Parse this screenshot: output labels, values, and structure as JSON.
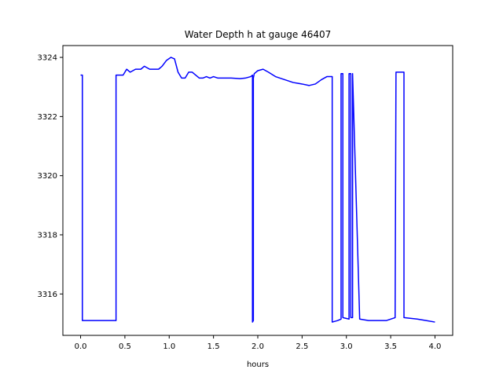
{
  "chart_data": {
    "type": "line",
    "title": "Water Depth h at gauge 46407",
    "xlabel": "hours",
    "ylabel": "",
    "xlim": [
      -0.2,
      4.2
    ],
    "ylim": [
      3314.6,
      3324.4
    ],
    "xticks": [
      0.0,
      0.5,
      1.0,
      1.5,
      2.0,
      2.5,
      3.0,
      3.5,
      4.0
    ],
    "xtick_labels": [
      "0.0",
      "0.5",
      "1.0",
      "1.5",
      "2.0",
      "2.5",
      "3.0",
      "3.5",
      "4.0"
    ],
    "yticks": [
      3316,
      3318,
      3320,
      3322,
      3324
    ],
    "ytick_labels": [
      "3316",
      "3318",
      "3320",
      "3322",
      "3324"
    ],
    "grid": false,
    "series": [
      {
        "color": "#0000ff",
        "x": [
          0.0,
          0.02,
          0.02,
          0.38,
          0.4,
          0.4,
          0.48,
          0.52,
          0.56,
          0.62,
          0.68,
          0.72,
          0.78,
          0.82,
          0.88,
          0.92,
          0.97,
          1.02,
          1.06,
          1.1,
          1.14,
          1.18,
          1.22,
          1.26,
          1.3,
          1.34,
          1.38,
          1.42,
          1.46,
          1.5,
          1.55,
          1.6,
          1.7,
          1.8,
          1.86,
          1.92,
          1.94,
          1.94,
          1.95,
          1.95,
          1.96,
          2.0,
          2.06,
          2.12,
          2.2,
          2.3,
          2.4,
          2.5,
          2.58,
          2.65,
          2.72,
          2.78,
          2.84,
          2.84,
          2.9,
          2.94,
          2.94,
          2.96,
          2.96,
          3.03,
          3.03,
          3.05,
          3.05,
          3.07,
          3.07,
          3.15,
          3.25,
          3.35,
          3.45,
          3.55,
          3.56,
          3.56,
          3.65,
          3.65,
          3.8,
          3.9,
          4.0
        ],
        "y": [
          3323.4,
          3323.4,
          3315.1,
          3315.1,
          3315.1,
          3323.4,
          3323.4,
          3323.6,
          3323.5,
          3323.6,
          3323.6,
          3323.7,
          3323.6,
          3323.6,
          3323.6,
          3323.7,
          3323.9,
          3324.0,
          3323.95,
          3323.5,
          3323.3,
          3323.3,
          3323.5,
          3323.5,
          3323.4,
          3323.3,
          3323.3,
          3323.35,
          3323.3,
          3323.35,
          3323.3,
          3323.3,
          3323.3,
          3323.28,
          3323.3,
          3323.35,
          3323.4,
          3315.05,
          3315.1,
          3323.3,
          3323.45,
          3323.55,
          3323.6,
          3323.5,
          3323.35,
          3323.25,
          3323.15,
          3323.1,
          3323.05,
          3323.1,
          3323.25,
          3323.35,
          3323.35,
          3315.05,
          3315.1,
          3315.15,
          3323.45,
          3323.45,
          3315.2,
          3315.15,
          3323.45,
          3323.45,
          3315.2,
          3315.2,
          3323.45,
          3315.15,
          3315.1,
          3315.1,
          3315.1,
          3315.2,
          3323.5,
          3323.5,
          3323.5,
          3315.2,
          3315.15,
          3315.1,
          3315.05
        ]
      }
    ]
  }
}
